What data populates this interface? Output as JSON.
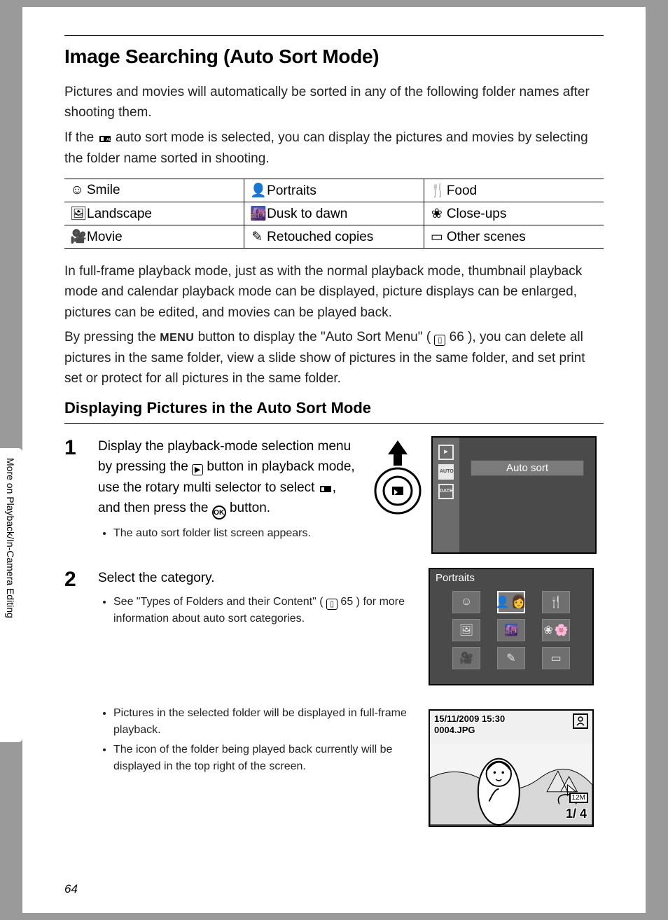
{
  "colors": {
    "page_bg": "#ffffff",
    "outer_bg": "#9a9a9a",
    "text": "#222222",
    "lcd_dark": "#4a4a4a",
    "lcd_mid": "#6b6b6b",
    "lcd_light": "#e8e8e8"
  },
  "typography": {
    "body_pt": 14,
    "h1_pt": 21,
    "h2_pt": 17
  },
  "title": "Image Searching (Auto Sort Mode)",
  "intro1": "Pictures and movies will automatically be sorted in any of the following folder names after shooting them.",
  "intro2a": "If the ",
  "intro2b": " auto sort mode is selected, you can display the pictures and movies by selecting the folder name sorted in shooting.",
  "categories": {
    "rows": [
      [
        {
          "icon": "smile-icon",
          "glyph": "☺",
          "label": "Smile"
        },
        {
          "icon": "portrait-icon",
          "glyph": "👤",
          "label": "Portraits"
        },
        {
          "icon": "food-icon",
          "glyph": "🍴",
          "label": "Food"
        }
      ],
      [
        {
          "icon": "landscape-icon",
          "glyph": "🖼",
          "label": "Landscape"
        },
        {
          "icon": "dusk-icon",
          "glyph": "🌆",
          "label": "Dusk to dawn"
        },
        {
          "icon": "closeup-icon",
          "glyph": "❀",
          "label": "Close-ups"
        }
      ],
      [
        {
          "icon": "movie-icon",
          "glyph": "🎥",
          "label": "Movie"
        },
        {
          "icon": "retouch-icon",
          "glyph": "✎",
          "label": "Retouched copies"
        },
        {
          "icon": "other-icon",
          "glyph": "▭",
          "label": "Other scenes"
        }
      ]
    ]
  },
  "para_after_table": "In full-frame playback mode, just as with the normal playback mode, thumbnail playback mode and calendar playback mode can be displayed, picture displays can be enlarged, pictures can be edited, and movies can be played back.",
  "para_menu_a": "By pressing the ",
  "para_menu_button": "MENU",
  "para_menu_b": " button to display the \"Auto Sort Menu\" (",
  "para_menu_ref": " 66",
  "para_menu_c": "), you can delete all pictures in the same folder, view a slide show of pictures in the same folder, and set print set or protect for all pictures in the same folder.",
  "subhead": "Displaying Pictures in the Auto Sort Mode",
  "step1": {
    "num": "1",
    "main_a": "Display the playback-mode selection menu by pressing the ",
    "main_b": " button in playback mode, use the rotary multi selector to select ",
    "main_c": ", and then press the ",
    "main_d": " button.",
    "bullet1": "The auto sort folder list screen appears.",
    "lcd_banner": "Auto sort",
    "lcd_sidebar": [
      "▶",
      "AUTO",
      "DATE"
    ]
  },
  "step2": {
    "num": "2",
    "main": "Select the category.",
    "bullet1a": "See \"Types of Folders and their Content\" (",
    "bullet1_ref": " 65",
    "bullet1b": ") for more information about auto sort categories.",
    "grid_title": "Portraits",
    "grid": [
      [
        "☺",
        "👤",
        "🍴"
      ],
      [
        "🖼",
        "🌆",
        "❀"
      ],
      [
        "🎥",
        "✎",
        "▭"
      ]
    ]
  },
  "step2b": {
    "bullet2": "Pictures in the selected folder will be displayed in full-frame playback.",
    "bullet3": "The icon of the folder being played back currently will be displayed in the top right of the screen.",
    "date": "15/11/2009 15:30",
    "filename": "0004.JPG",
    "counter": "1/   4",
    "res_badge": "12M"
  },
  "sidebar_label": "More on Playback/In-Camera Editing",
  "page_number": "64"
}
